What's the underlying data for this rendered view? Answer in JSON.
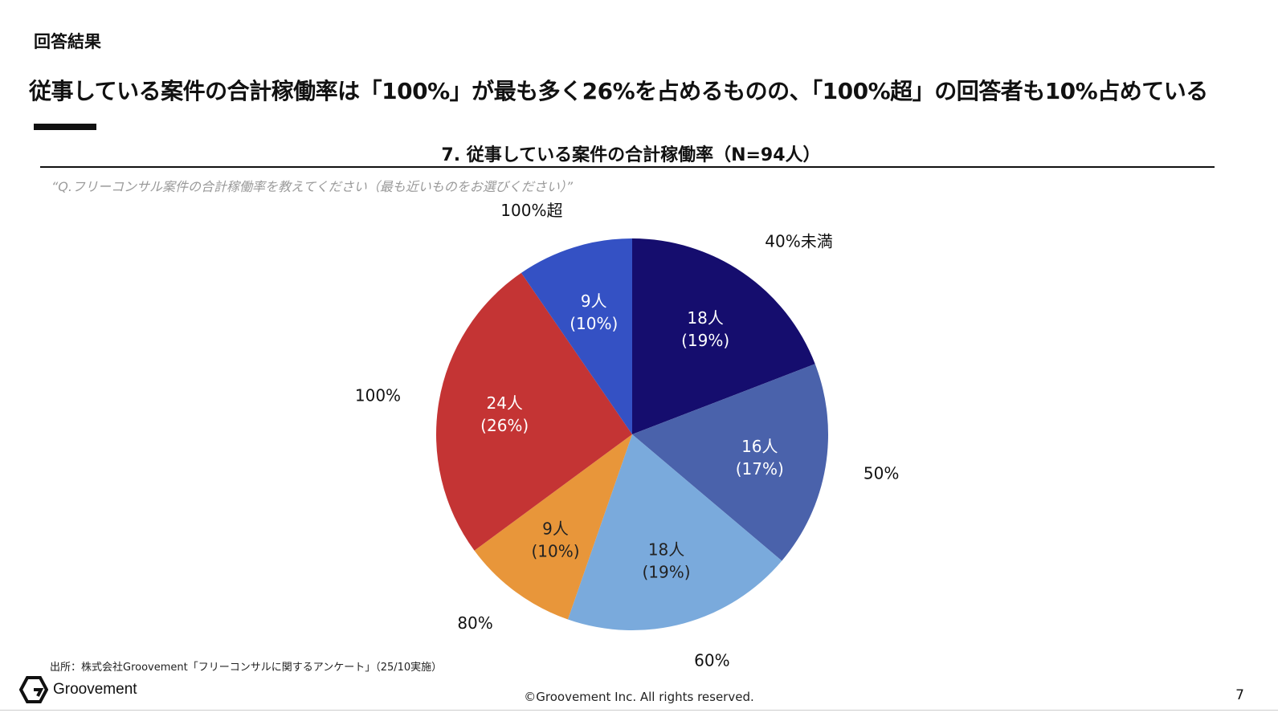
{
  "header": {
    "section_label": "回答結果",
    "headline": "従事している案件の合計稼働率は「100%」が最も多く26%を占めるものの、「100%超」の回答者も10%占めている"
  },
  "chart_data": {
    "type": "pie",
    "title": "7. 従事している案件の合計稼働率（N=94人）",
    "question": "“Q.フリーコンサル案件の合計稼働率を教えてください（最も近いものをお選びください）”",
    "slices": [
      {
        "label": "40%未満",
        "count_text": "18人",
        "pct_text": "(19%)",
        "value": 18,
        "color": "#150d6e",
        "text_color": "#ffffff"
      },
      {
        "label": "50%",
        "count_text": "16人",
        "pct_text": "(17%)",
        "value": 16,
        "color": "#4a62ab",
        "text_color": "#ffffff"
      },
      {
        "label": "60%",
        "count_text": "18人",
        "pct_text": "(19%)",
        "value": 18,
        "color": "#7aaadc",
        "text_color": "#222222"
      },
      {
        "label": "80%",
        "count_text": "9人",
        "pct_text": "(10%)",
        "value": 9,
        "color": "#e8963a",
        "text_color": "#222222"
      },
      {
        "label": "100%",
        "count_text": "24人",
        "pct_text": "(26%)",
        "value": 24,
        "color": "#c43434",
        "text_color": "#ffffff"
      },
      {
        "label": "100%超",
        "count_text": "9人",
        "pct_text": "(10%)",
        "value": 9,
        "color": "#3451c4",
        "text_color": "#ffffff"
      }
    ]
  },
  "footer": {
    "source": "出所：株式会社Groovement「フリーコンサルに関するアンケート」（25/10実施）",
    "logo_text": "Groovement",
    "copyright": "©Groovement Inc. All rights reserved.",
    "page_number": "7"
  }
}
